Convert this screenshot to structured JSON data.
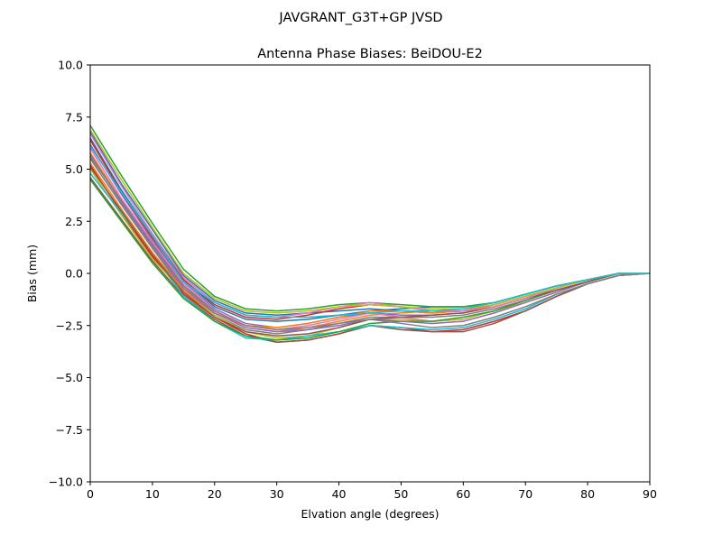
{
  "figure": {
    "suptitle": "JAVGRANT_G3T+GP JVSD"
  },
  "chart_data": {
    "type": "line",
    "title": "Antenna Phase Biases: BeiDOU-E2",
    "xlabel": "Elvation angle (degrees)",
    "ylabel": "Bias (mm)",
    "xlim": [
      0,
      90
    ],
    "ylim": [
      -10,
      10
    ],
    "xticks": [
      0,
      10,
      20,
      30,
      40,
      50,
      60,
      70,
      80,
      90
    ],
    "xtick_labels": [
      "0",
      "10",
      "20",
      "30",
      "40",
      "50",
      "60",
      "70",
      "80",
      "90"
    ],
    "yticks": [
      -10,
      -7.5,
      -5,
      -2.5,
      0,
      2.5,
      5,
      7.5,
      10
    ],
    "ytick_labels": [
      "−10.0",
      "−7.5",
      "−5.0",
      "−2.5",
      "0.0",
      "2.5",
      "5.0",
      "7.5",
      "10.0"
    ],
    "grid": false,
    "legend": "none",
    "x": [
      0,
      5,
      10,
      15,
      20,
      25,
      30,
      35,
      40,
      45,
      50,
      55,
      60,
      65,
      70,
      75,
      80,
      85,
      90
    ],
    "series": [
      {
        "color": "#1f77b4",
        "values": [
          6.5,
          4.0,
          1.8,
          -0.3,
          -1.6,
          -2.2,
          -2.3,
          -2.2,
          -2.0,
          -1.8,
          -1.7,
          -1.6,
          -1.6,
          -1.4,
          -1.0,
          -0.6,
          -0.3,
          0.0,
          0.0
        ]
      },
      {
        "color": "#ff7f0e",
        "values": [
          5.8,
          3.5,
          1.4,
          -0.6,
          -1.9,
          -2.6,
          -2.8,
          -2.6,
          -2.3,
          -2.0,
          -1.9,
          -1.8,
          -1.8,
          -1.5,
          -1.1,
          -0.7,
          -0.3,
          0.0,
          0.0
        ]
      },
      {
        "color": "#2ca02c",
        "values": [
          7.1,
          4.7,
          2.4,
          0.2,
          -1.1,
          -1.7,
          -1.8,
          -1.7,
          -1.5,
          -1.4,
          -1.5,
          -1.6,
          -1.6,
          -1.4,
          -1.0,
          -0.6,
          -0.3,
          0.0,
          0.0
        ]
      },
      {
        "color": "#d62728",
        "values": [
          5.2,
          2.9,
          0.8,
          -1.0,
          -2.1,
          -2.9,
          -3.3,
          -3.2,
          -2.9,
          -2.5,
          -2.6,
          -2.8,
          -2.7,
          -2.3,
          -1.8,
          -1.1,
          -0.5,
          -0.1,
          0.0
        ]
      },
      {
        "color": "#9467bd",
        "values": [
          6.2,
          3.8,
          1.6,
          -0.4,
          -1.7,
          -2.4,
          -2.6,
          -2.4,
          -2.1,
          -1.9,
          -2.0,
          -2.0,
          -1.9,
          -1.6,
          -1.2,
          -0.7,
          -0.3,
          0.0,
          0.0
        ]
      },
      {
        "color": "#8c564b",
        "values": [
          4.6,
          2.6,
          0.6,
          -1.1,
          -2.2,
          -3.0,
          -3.3,
          -3.2,
          -2.9,
          -2.5,
          -2.7,
          -2.8,
          -2.8,
          -2.4,
          -1.8,
          -1.1,
          -0.5,
          -0.1,
          0.0
        ]
      },
      {
        "color": "#e377c2",
        "values": [
          6.0,
          3.6,
          1.5,
          -0.5,
          -1.8,
          -2.5,
          -2.7,
          -2.5,
          -2.2,
          -1.9,
          -2.1,
          -2.3,
          -2.2,
          -1.8,
          -1.3,
          -0.8,
          -0.4,
          0.0,
          0.0
        ]
      },
      {
        "color": "#7f7f7f",
        "values": [
          5.5,
          3.3,
          1.2,
          -0.8,
          -2.0,
          -2.7,
          -2.9,
          -2.7,
          -2.4,
          -2.1,
          -2.1,
          -2.1,
          -2.0,
          -1.7,
          -1.3,
          -0.8,
          -0.4,
          0.0,
          0.0
        ]
      },
      {
        "color": "#bcbd22",
        "values": [
          5.0,
          2.8,
          0.7,
          -0.9,
          -2.0,
          -2.8,
          -3.1,
          -3.0,
          -2.6,
          -2.2,
          -2.2,
          -2.3,
          -2.2,
          -1.8,
          -1.4,
          -0.9,
          -0.4,
          0.0,
          0.0
        ]
      },
      {
        "color": "#17becf",
        "values": [
          4.8,
          2.9,
          1.0,
          -1.1,
          -2.3,
          -3.1,
          -3.2,
          -3.0,
          -2.8,
          -2.5,
          -2.6,
          -2.7,
          -2.6,
          -2.2,
          -1.7,
          -1.0,
          -0.5,
          -0.1,
          0.0
        ]
      },
      {
        "color": "#1f77b4",
        "values": [
          6.8,
          4.3,
          2.1,
          -0.1,
          -1.3,
          -1.9,
          -2.0,
          -1.9,
          -1.8,
          -1.7,
          -1.8,
          -1.9,
          -1.8,
          -1.5,
          -1.1,
          -0.7,
          -0.3,
          0.0,
          0.0
        ]
      },
      {
        "color": "#ff7f0e",
        "values": [
          5.3,
          3.1,
          1.0,
          -0.8,
          -1.9,
          -2.5,
          -2.6,
          -2.4,
          -2.1,
          -1.8,
          -1.8,
          -1.9,
          -1.8,
          -1.5,
          -1.1,
          -0.7,
          -0.3,
          0.0,
          0.0
        ]
      },
      {
        "color": "#2ca02c",
        "values": [
          4.5,
          2.5,
          0.5,
          -1.2,
          -2.3,
          -3.0,
          -3.2,
          -3.1,
          -2.8,
          -2.4,
          -2.3,
          -2.3,
          -2.1,
          -1.8,
          -1.3,
          -0.8,
          -0.4,
          0.0,
          0.0
        ]
      },
      {
        "color": "#d62728",
        "values": [
          6.4,
          3.9,
          1.7,
          -0.3,
          -1.5,
          -2.1,
          -2.2,
          -2.0,
          -1.7,
          -1.5,
          -1.6,
          -1.8,
          -1.8,
          -1.6,
          -1.2,
          -0.7,
          -0.3,
          0.0,
          0.0
        ]
      },
      {
        "color": "#9467bd",
        "values": [
          5.7,
          3.4,
          1.3,
          -0.7,
          -1.9,
          -2.6,
          -2.8,
          -2.7,
          -2.5,
          -2.2,
          -2.3,
          -2.4,
          -2.3,
          -1.9,
          -1.4,
          -0.9,
          -0.4,
          0.0,
          0.0
        ]
      },
      {
        "color": "#8c564b",
        "values": [
          5.1,
          3.0,
          0.9,
          -0.9,
          -2.1,
          -2.8,
          -3.0,
          -2.9,
          -2.6,
          -2.2,
          -2.1,
          -2.0,
          -1.9,
          -1.6,
          -1.2,
          -0.8,
          -0.4,
          0.0,
          0.0
        ]
      },
      {
        "color": "#e377c2",
        "values": [
          6.7,
          4.2,
          1.9,
          -0.2,
          -1.4,
          -2.0,
          -2.1,
          -1.9,
          -1.6,
          -1.4,
          -1.6,
          -1.8,
          -1.8,
          -1.6,
          -1.2,
          -0.7,
          -0.3,
          0.0,
          0.0
        ]
      },
      {
        "color": "#7f7f7f",
        "values": [
          5.6,
          3.5,
          1.4,
          -0.6,
          -1.8,
          -2.5,
          -2.7,
          -2.6,
          -2.4,
          -2.2,
          -2.4,
          -2.6,
          -2.5,
          -2.1,
          -1.6,
          -1.0,
          -0.5,
          -0.1,
          0.0
        ]
      },
      {
        "color": "#bcbd22",
        "values": [
          6.9,
          4.5,
          2.2,
          0.0,
          -1.2,
          -1.8,
          -1.9,
          -1.8,
          -1.6,
          -1.5,
          -1.6,
          -1.7,
          -1.7,
          -1.5,
          -1.1,
          -0.7,
          -0.3,
          0.0,
          0.0
        ]
      },
      {
        "color": "#17becf",
        "values": [
          6.1,
          3.9,
          1.8,
          -0.4,
          -1.4,
          -2.0,
          -2.1,
          -2.1,
          -2.0,
          -1.9,
          -1.8,
          -1.8,
          -1.7,
          -1.4,
          -1.0,
          -0.6,
          -0.3,
          0.0,
          0.0
        ]
      }
    ]
  }
}
